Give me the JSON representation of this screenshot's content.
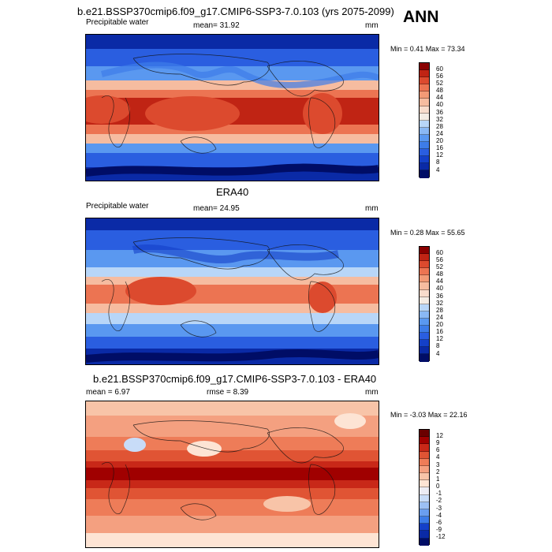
{
  "header": {
    "title": "b.e21.BSSP370cmip6.f09_g17.CMIP6-SSP3-7.0.103 (yrs 2075-2099)",
    "season": "ANN"
  },
  "panels": [
    {
      "id": "model",
      "left": "Precipitable water",
      "mid": "mean=  31.92",
      "unit": "mm",
      "minmax": "Min =   0.41 Max =  73.34",
      "levels": [
        "60",
        "56",
        "52",
        "48",
        "44",
        "40",
        "36",
        "32",
        "28",
        "24",
        "20",
        "16",
        "12",
        "8",
        "4"
      ]
    },
    {
      "id": "obs",
      "heading": "ERA40",
      "left": "Precipitable water",
      "mid": "mean=  24.95",
      "unit": "mm",
      "minmax": "Min =   0.28 Max =  55.65",
      "levels": [
        "60",
        "56",
        "52",
        "48",
        "44",
        "40",
        "36",
        "32",
        "28",
        "24",
        "20",
        "16",
        "12",
        "8",
        "4"
      ]
    },
    {
      "id": "diff",
      "heading": "b.e21.BSSP370cmip6.f09_g17.CMIP6-SSP3-7.0.103 - ERA40",
      "left": "mean =   6.97",
      "mid": "rmse =   8.39",
      "unit": "mm",
      "minmax": "Min =  -3.03 Max =  22.16",
      "levels": [
        "12",
        "9",
        "6",
        "4",
        "3",
        "2",
        "1",
        "0",
        "-1",
        "-2",
        "-3",
        "-4",
        "-6",
        "-9",
        "-12"
      ]
    }
  ],
  "colors": {
    "seq": [
      "#000d66",
      "#0a2aa6",
      "#1440c8",
      "#2a5ee0",
      "#3d7ce8",
      "#5a98f0",
      "#8ab8f4",
      "#b8d6f8",
      "#f8dccc",
      "#f6bca0",
      "#f29a76",
      "#ec7452",
      "#dc4a2e",
      "#c02414",
      "#8a0000",
      "#5a0000"
    ],
    "div": [
      "#000d66",
      "#1440c8",
      "#3d7ce8",
      "#6a9ef0",
      "#9cc0f4",
      "#c8dcf8",
      "#ececf4",
      "#fde4d4",
      "#f8c4a8",
      "#f4a080",
      "#ee7c58",
      "#e05434",
      "#c82818",
      "#a00000",
      "#6a0000"
    ]
  }
}
